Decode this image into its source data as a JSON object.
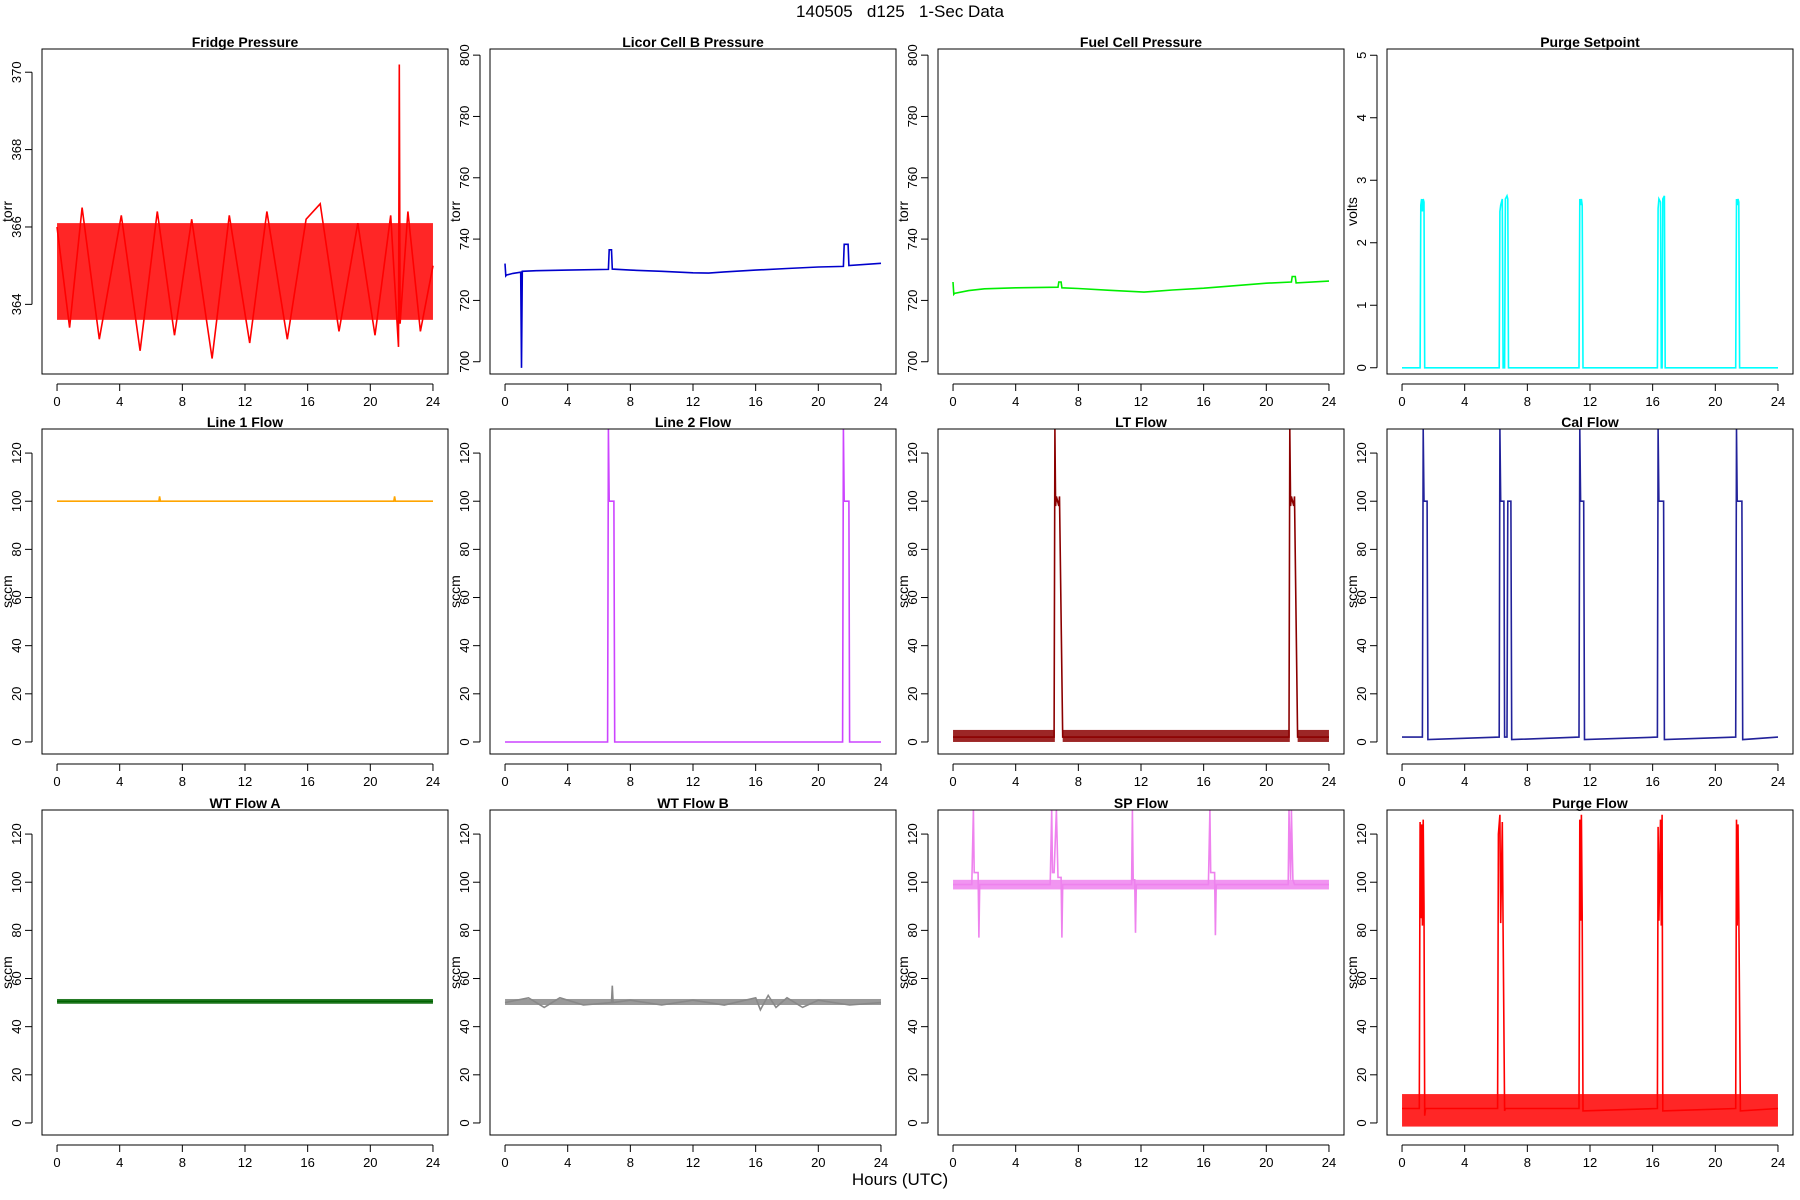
{
  "figure": {
    "title": "140505   d125   1-Sec Data",
    "xlabel": "Hours (UTC)"
  },
  "chart_data": [
    {
      "type": "line",
      "title": "Fridge Pressure",
      "xlabel": "",
      "ylabel": "torr",
      "xlim": [
        0,
        24
      ],
      "ylim": [
        362.2,
        370.6
      ],
      "xticks": [
        0,
        4,
        8,
        12,
        16,
        20,
        24
      ],
      "yticks": [
        364,
        366,
        368,
        370
      ],
      "band": {
        "x": [
          0,
          24
        ],
        "ymin": 363.6,
        "ymax": 366.1
      },
      "series": [
        {
          "color": "#ff0000",
          "x": [
            0,
            0.8,
            1.6,
            2.7,
            4.1,
            5.3,
            6.4,
            7.5,
            8.6,
            9.9,
            11.0,
            12.3,
            13.4,
            14.7,
            15.9,
            16.8,
            18.0,
            19.2,
            20.3,
            21.3,
            21.8,
            21.85,
            21.9,
            22.4,
            23.2,
            24
          ],
          "y": [
            366.0,
            363.4,
            366.5,
            363.1,
            366.3,
            362.8,
            366.4,
            363.2,
            366.2,
            362.6,
            366.3,
            363.0,
            366.4,
            363.1,
            366.2,
            366.6,
            363.3,
            366.1,
            363.2,
            366.3,
            362.9,
            370.2,
            363.5,
            366.4,
            363.3,
            365.0
          ]
        }
      ]
    },
    {
      "type": "line",
      "title": "Licor Cell B Pressure",
      "xlabel": "",
      "ylabel": "torr",
      "xlim": [
        0,
        24
      ],
      "ylim": [
        696,
        802
      ],
      "xticks": [
        0,
        4,
        8,
        12,
        16,
        20,
        24
      ],
      "yticks": [
        700,
        720,
        740,
        760,
        780,
        800
      ],
      "series": [
        {
          "color": "#0000cc",
          "x": [
            0,
            0.05,
            0.1,
            0.5,
            1.0,
            1.05,
            1.1,
            2,
            4,
            6.6,
            6.65,
            6.8,
            6.85,
            8,
            10,
            12,
            13,
            14,
            16,
            18,
            20,
            21.6,
            21.65,
            21.9,
            21.95,
            24
          ],
          "y": [
            732,
            728,
            728.3,
            728.8,
            729.2,
            698,
            729.5,
            729.7,
            729.9,
            730.1,
            736.5,
            736.5,
            730.2,
            729.9,
            729.5,
            729.0,
            728.9,
            729.3,
            729.9,
            730.4,
            730.9,
            731.1,
            738.3,
            738.3,
            731.4,
            732.1
          ]
        }
      ]
    },
    {
      "type": "line",
      "title": "Fuel Cell Pressure",
      "xlabel": "",
      "ylabel": "torr",
      "xlim": [
        0,
        24
      ],
      "ylim": [
        696,
        802
      ],
      "xticks": [
        0,
        4,
        8,
        12,
        16,
        20,
        24
      ],
      "yticks": [
        700,
        720,
        740,
        760,
        780,
        800
      ],
      "series": [
        {
          "color": "#00ee00",
          "x": [
            0,
            0.05,
            0.1,
            1,
            2,
            4,
            6.7,
            6.75,
            6.9,
            6.95,
            8,
            10,
            12.2,
            13,
            14,
            16,
            18,
            20,
            21.6,
            21.65,
            21.85,
            21.9,
            24
          ],
          "y": [
            726,
            722,
            722.3,
            723.2,
            723.8,
            724.1,
            724.3,
            726.0,
            726.0,
            724.1,
            723.9,
            723.3,
            722.7,
            723.0,
            723.4,
            724.0,
            724.8,
            725.6,
            726.0,
            727.8,
            727.8,
            725.7,
            726.3
          ]
        }
      ]
    },
    {
      "type": "line",
      "title": "Purge Setpoint",
      "xlabel": "",
      "ylabel": "volts",
      "xlim": [
        0,
        24
      ],
      "ylim": [
        -0.1,
        5.1
      ],
      "xticks": [
        0,
        4,
        8,
        12,
        16,
        20,
        24
      ],
      "yticks": [
        0,
        1,
        2,
        3,
        4,
        5
      ],
      "series": [
        {
          "color": "#00ffff",
          "x": [
            0,
            1.15,
            1.2,
            1.25,
            1.3,
            1.35,
            1.4,
            1.45,
            1.5,
            6.2,
            6.25,
            6.3,
            6.4,
            6.45,
            6.55,
            6.6,
            6.7,
            6.75,
            6.8,
            6.85,
            11.3,
            11.35,
            11.4,
            11.45,
            11.5,
            11.55,
            11.6,
            16.3,
            16.35,
            16.4,
            16.5,
            16.55,
            16.6,
            16.65,
            16.75,
            16.8,
            21.3,
            21.35,
            21.4,
            21.45,
            21.5,
            21.55,
            21.6,
            24
          ],
          "y": [
            0,
            0,
            2.6,
            2.7,
            2.5,
            2.7,
            2.65,
            0,
            0,
            0,
            2.5,
            2.6,
            2.7,
            0,
            0,
            2.7,
            2.75,
            2.7,
            0,
            0,
            0,
            2.7,
            2.6,
            2.7,
            2.6,
            0,
            0,
            0,
            2.55,
            2.7,
            2.65,
            0,
            0,
            2.7,
            2.75,
            0,
            0,
            2.7,
            2.6,
            2.7,
            2.65,
            0,
            0,
            0
          ]
        }
      ]
    },
    {
      "type": "line",
      "title": "Line 1 Flow",
      "xlabel": "",
      "ylabel": "sccm",
      "xlim": [
        0,
        24
      ],
      "ylim": [
        -5,
        130
      ],
      "xticks": [
        0,
        4,
        8,
        12,
        16,
        20,
        24
      ],
      "yticks": [
        0,
        20,
        40,
        60,
        80,
        100,
        120
      ],
      "series": [
        {
          "color": "#ffa500",
          "x": [
            0,
            6.5,
            6.55,
            6.6,
            12,
            21.5,
            21.55,
            21.6,
            24
          ],
          "y": [
            100,
            100,
            102,
            100,
            100,
            100,
            102,
            100,
            100
          ]
        }
      ]
    },
    {
      "type": "line",
      "title": "Line 2 Flow",
      "xlabel": "",
      "ylabel": "sccm",
      "xlim": [
        0,
        24
      ],
      "ylim": [
        -5,
        130
      ],
      "xticks": [
        0,
        4,
        8,
        12,
        16,
        20,
        24
      ],
      "yticks": [
        0,
        20,
        40,
        60,
        80,
        100,
        120
      ],
      "series": [
        {
          "color": "#cc44ff",
          "x": [
            0,
            6.55,
            6.6,
            6.65,
            6.7,
            6.9,
            6.95,
            7.0,
            21.5,
            21.55,
            21.6,
            21.65,
            21.9,
            21.95,
            22.0,
            24
          ],
          "y": [
            0,
            0,
            130,
            100,
            100,
            100,
            100,
            0,
            0,
            0,
            130,
            100,
            100,
            100,
            0,
            0
          ]
        }
      ]
    },
    {
      "type": "line",
      "title": "LT Flow",
      "xlabel": "",
      "ylabel": "sccm",
      "xlim": [
        0,
        24
      ],
      "ylim": [
        -5,
        130
      ],
      "xticks": [
        0,
        4,
        8,
        12,
        16,
        20,
        24
      ],
      "yticks": [
        0,
        20,
        40,
        60,
        80,
        100,
        120
      ],
      "band": {
        "x": [
          0,
          6.5
        ],
        "ymin": 0,
        "ymax": 5
      },
      "band2": {
        "x": [
          7.0,
          21.5
        ],
        "ymin": 0,
        "ymax": 5
      },
      "band3": {
        "x": [
          22.0,
          24
        ],
        "ymin": 0,
        "ymax": 5
      },
      "series": [
        {
          "color": "#8b0000",
          "x": [
            0,
            6.45,
            6.5,
            6.55,
            6.6,
            6.75,
            6.8,
            7.0,
            21.45,
            21.5,
            21.55,
            21.6,
            21.75,
            21.8,
            22.0,
            24
          ],
          "y": [
            2,
            2,
            130,
            98,
            102,
            98,
            102,
            2,
            2,
            130,
            98,
            102,
            98,
            102,
            2,
            2
          ]
        }
      ]
    },
    {
      "type": "line",
      "title": "Cal Flow",
      "xlabel": "",
      "ylabel": "sccm",
      "xlim": [
        0,
        24
      ],
      "ylim": [
        -5,
        130
      ],
      "xticks": [
        0,
        4,
        8,
        12,
        16,
        20,
        24
      ],
      "yticks": [
        0,
        20,
        40,
        60,
        80,
        100,
        120
      ],
      "series": [
        {
          "color": "#22229a",
          "x": [
            0,
            1.3,
            1.35,
            1.4,
            1.6,
            1.65,
            6.2,
            6.25,
            6.3,
            6.5,
            6.55,
            6.7,
            6.75,
            6.95,
            7.0,
            11.3,
            11.35,
            11.4,
            11.6,
            11.65,
            16.3,
            16.35,
            16.4,
            16.7,
            16.75,
            21.3,
            21.35,
            21.4,
            21.7,
            21.75,
            24
          ],
          "y": [
            2,
            2,
            130,
            100,
            100,
            1,
            2,
            130,
            100,
            100,
            2,
            2,
            100,
            100,
            1,
            2,
            130,
            100,
            100,
            1,
            2,
            130,
            100,
            100,
            1,
            2,
            130,
            100,
            100,
            1,
            2
          ]
        }
      ]
    },
    {
      "type": "line",
      "title": "WT Flow A",
      "xlabel": "",
      "ylabel": "sccm",
      "xlim": [
        0,
        24
      ],
      "ylim": [
        -5,
        130
      ],
      "xticks": [
        0,
        4,
        8,
        12,
        16,
        20,
        24
      ],
      "yticks": [
        0,
        20,
        40,
        60,
        80,
        100,
        120
      ],
      "band": {
        "x": [
          0,
          24
        ],
        "ymin": 49.5,
        "ymax": 51.5
      },
      "series": [
        {
          "color": "#006400",
          "x": [
            0,
            6,
            12,
            18,
            24
          ],
          "y": [
            50.5,
            50.5,
            50.5,
            50.5,
            50.5
          ]
        }
      ]
    },
    {
      "type": "line",
      "title": "WT Flow B",
      "xlabel": "",
      "ylabel": "sccm",
      "xlim": [
        0,
        24
      ],
      "ylim": [
        -5,
        130
      ],
      "xticks": [
        0,
        4,
        8,
        12,
        16,
        20,
        24
      ],
      "yticks": [
        0,
        20,
        40,
        60,
        80,
        100,
        120
      ],
      "band": {
        "x": [
          0,
          24
        ],
        "ymin": 49,
        "ymax": 51.5
      },
      "series": [
        {
          "color": "#888888",
          "x": [
            0,
            1.5,
            2.5,
            3.5,
            5,
            6.8,
            6.85,
            6.9,
            8,
            10,
            12,
            14,
            16,
            16.3,
            16.8,
            17.3,
            18,
            19,
            20,
            22,
            24
          ],
          "y": [
            50,
            52,
            48,
            52,
            49,
            50,
            57,
            50,
            51,
            49,
            51,
            49,
            52,
            47,
            53,
            48,
            52,
            48,
            51,
            49,
            50
          ]
        }
      ]
    },
    {
      "type": "line",
      "title": "SP Flow",
      "xlabel": "",
      "ylabel": "sccm",
      "xlim": [
        0,
        24
      ],
      "ylim": [
        -5,
        130
      ],
      "xticks": [
        0,
        4,
        8,
        12,
        16,
        20,
        24
      ],
      "yticks": [
        0,
        20,
        40,
        60,
        80,
        100,
        120
      ],
      "band": {
        "x": [
          0,
          24
        ],
        "ymin": 97,
        "ymax": 101
      },
      "series": [
        {
          "color": "#ee82ee",
          "x": [
            0,
            1.2,
            1.3,
            1.35,
            1.4,
            1.6,
            1.65,
            1.7,
            6.2,
            6.3,
            6.35,
            6.45,
            6.6,
            6.7,
            6.8,
            6.9,
            6.95,
            7.0,
            11.4,
            11.45,
            11.5,
            11.6,
            11.65,
            11.7,
            16.3,
            16.4,
            16.45,
            16.7,
            16.75,
            16.8,
            21.4,
            21.45,
            21.55,
            21.6,
            21.7,
            21.8,
            24
          ],
          "y": [
            99,
            99,
            130,
            104,
            104,
            104,
            77,
            99,
            99,
            130,
            104,
            104,
            130,
            102,
            102,
            102,
            77,
            99,
            99,
            130,
            101,
            101,
            79,
            99,
            99,
            130,
            104,
            104,
            78,
            99,
            99,
            130,
            101,
            130,
            101,
            99,
            99
          ]
        }
      ]
    },
    {
      "type": "line",
      "title": "Purge Flow",
      "xlabel": "",
      "ylabel": "sccm",
      "xlim": [
        0,
        24
      ],
      "ylim": [
        -5,
        130
      ],
      "xticks": [
        0,
        4,
        8,
        12,
        16,
        20,
        24
      ],
      "yticks": [
        0,
        20,
        40,
        60,
        80,
        100,
        120
      ],
      "band": {
        "x": [
          0,
          24
        ],
        "ymin": -1.5,
        "ymax": 12
      },
      "series": [
        {
          "color": "#ff0000",
          "x": [
            0,
            1.1,
            1.15,
            1.2,
            1.25,
            1.3,
            1.35,
            1.4,
            1.45,
            1.5,
            6.1,
            6.15,
            6.25,
            6.3,
            6.4,
            6.45,
            6.55,
            6.6,
            11.3,
            11.35,
            11.4,
            11.45,
            11.5,
            11.55,
            16.3,
            16.35,
            16.4,
            16.5,
            16.55,
            16.6,
            16.65,
            21.3,
            21.35,
            21.4,
            21.45,
            21.5,
            21.6,
            24
          ],
          "y": [
            6,
            6,
            125,
            85,
            124,
            82,
            126,
            90,
            3,
            6,
            6,
            120,
            128,
            83,
            125,
            80,
            5,
            6,
            6,
            126,
            84,
            128,
            86,
            5,
            6,
            123,
            84,
            126,
            82,
            128,
            5,
            6,
            126,
            82,
            124,
            88,
            5,
            6
          ]
        }
      ]
    }
  ]
}
